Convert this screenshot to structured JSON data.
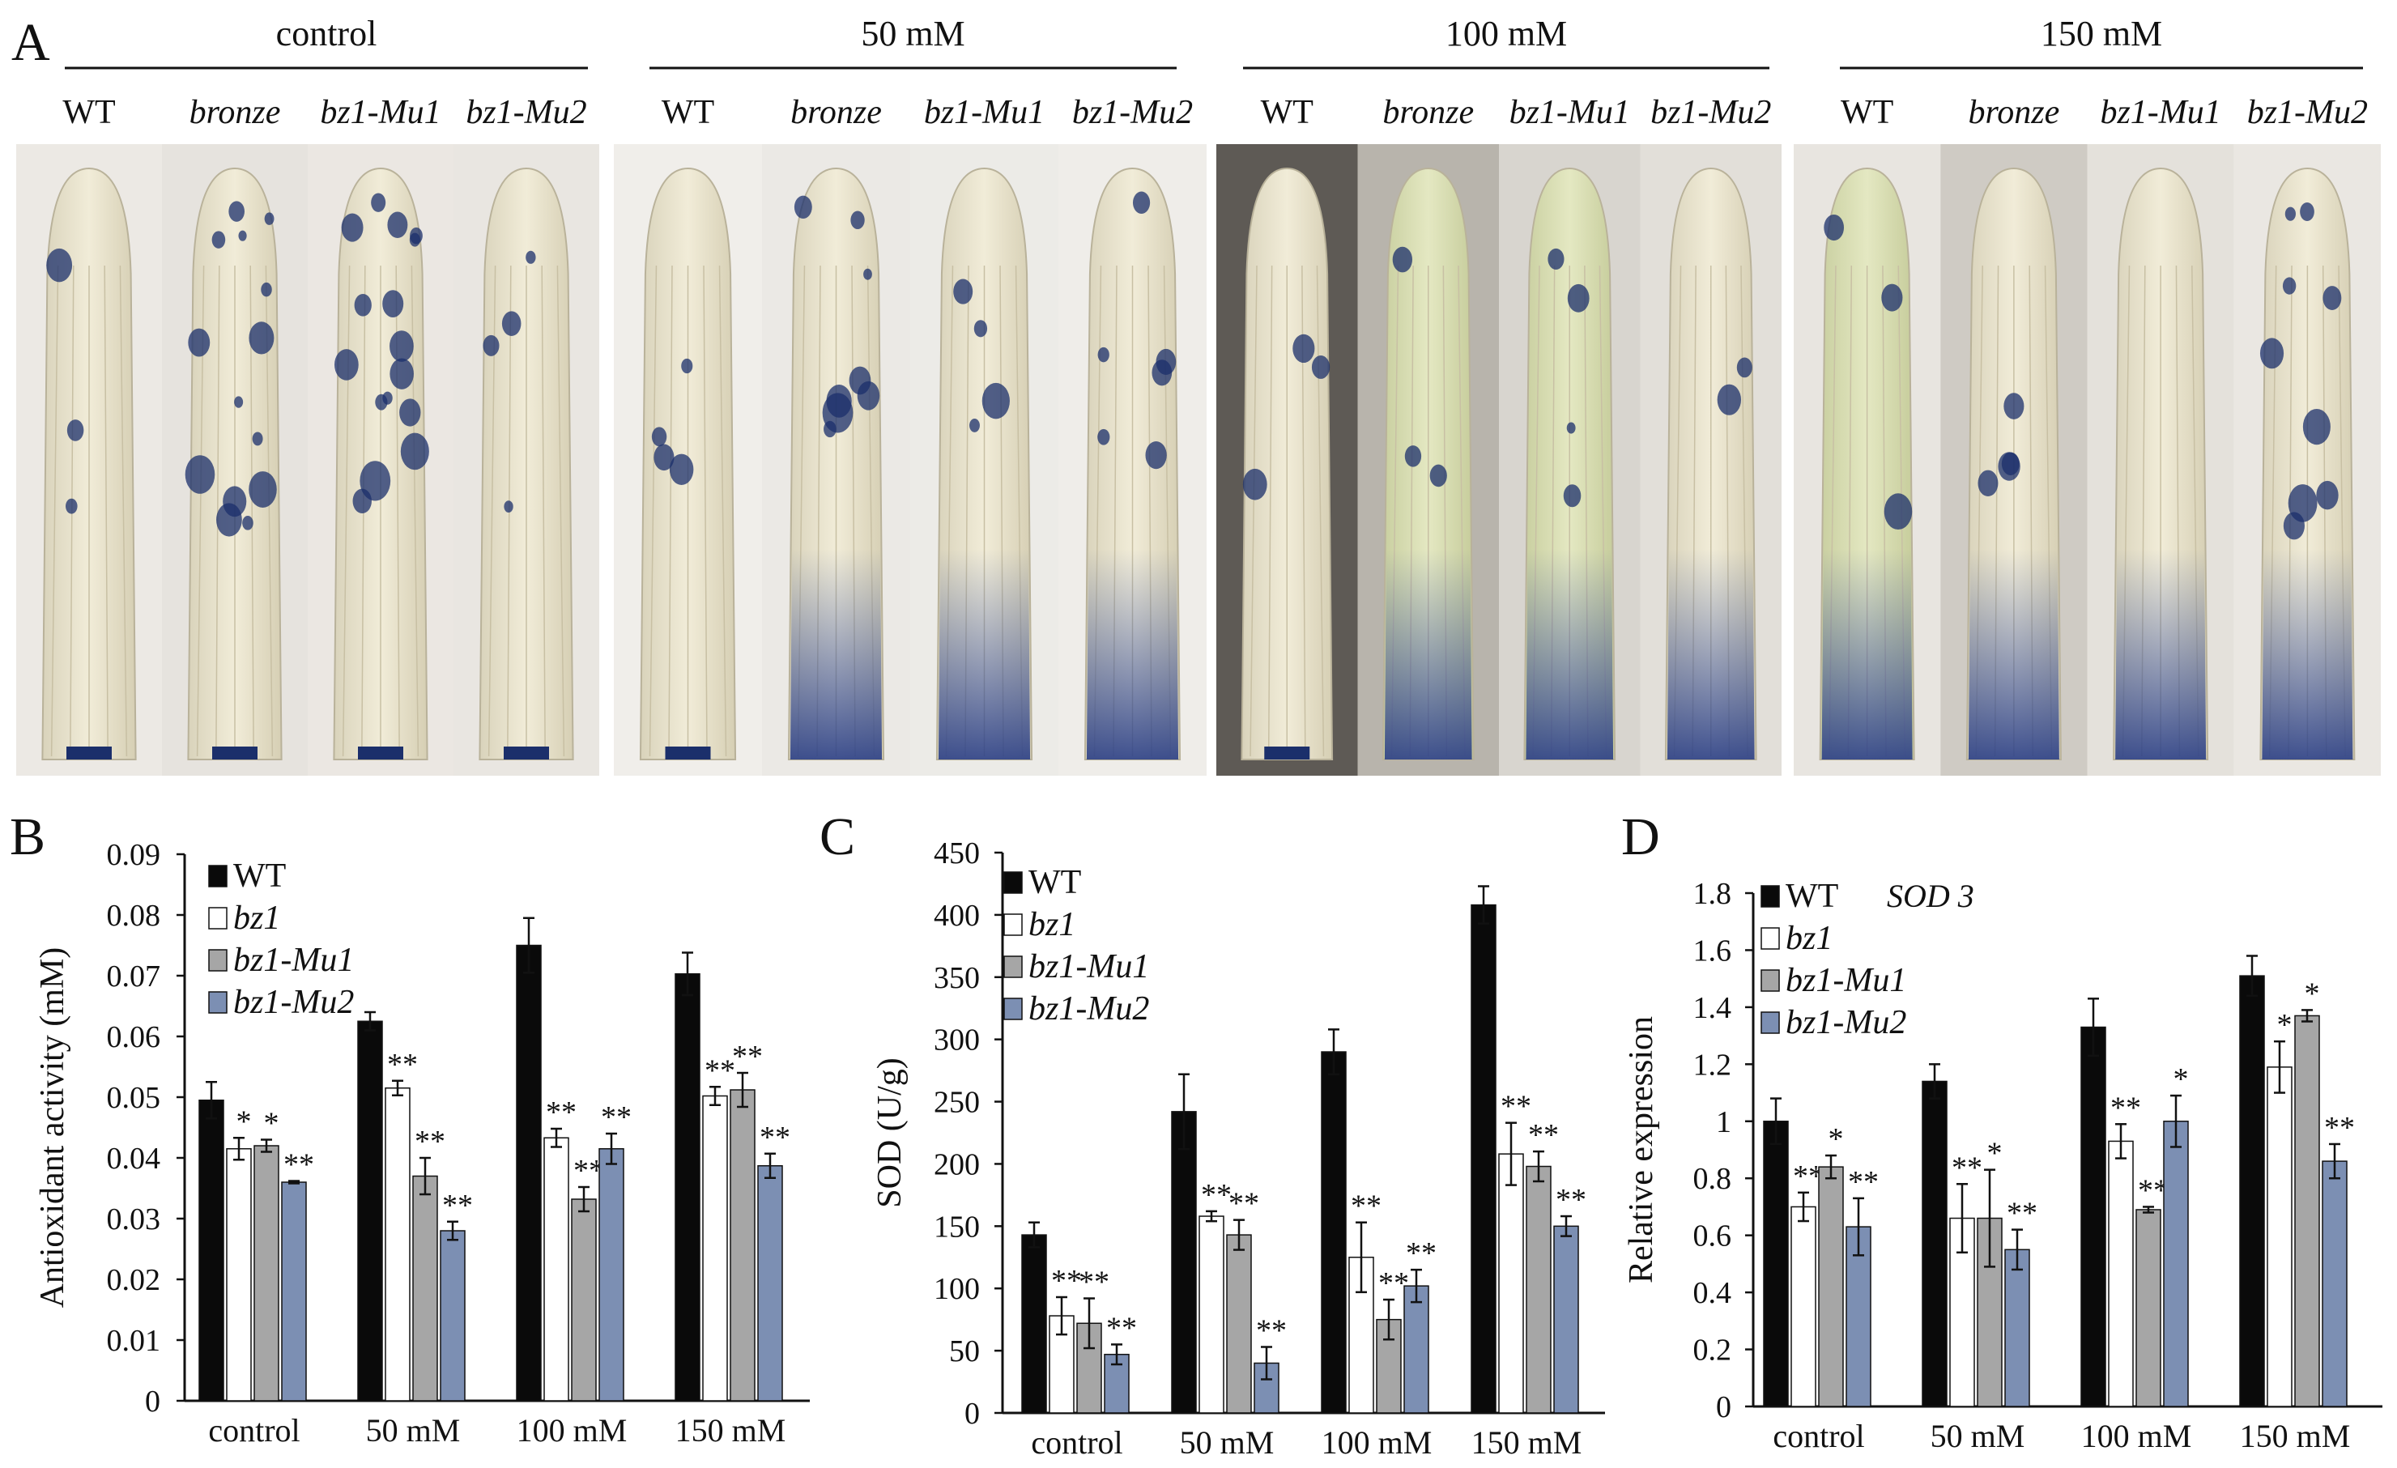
{
  "panel_a": {
    "label": "A",
    "groups": [
      {
        "title": "control",
        "genotypes": [
          "WT",
          "bronze",
          "bz1-Mu1",
          "bz1-Mu2"
        ]
      },
      {
        "title": "50 mM",
        "genotypes": [
          "WT",
          "bronze",
          "bz1-Mu1",
          "bz1-Mu2"
        ]
      },
      {
        "title": "100 mM",
        "genotypes": [
          "WT",
          "bronze",
          "bz1-Mu1",
          "bz1-Mu2"
        ]
      },
      {
        "title": "150 mM",
        "genotypes": [
          "WT",
          "bronze",
          "bz1-Mu1",
          "bz1-Mu2"
        ]
      }
    ]
  },
  "colors": {
    "wt": "#0a0a0a",
    "bz1": "#ffffff",
    "mu1": "#a6a6a6",
    "mu2": "#7c8fb3",
    "stain_blue": "#1b2f6b",
    "leaf": "#ece6cf"
  },
  "chart_data": [
    {
      "panel": "B",
      "type": "bar",
      "title": "",
      "ylabel": "Antioxidant activity (mM)",
      "xlabel": "",
      "ylim": [
        0,
        0.09
      ],
      "yticks": [
        "0",
        "0.01",
        "0.02",
        "0.03",
        "0.04",
        "0.05",
        "0.06",
        "0.07",
        "0.08",
        "0.09"
      ],
      "categories": [
        "control",
        "50 mM",
        "100 mM",
        "150 mM"
      ],
      "series": [
        {
          "name": "WT",
          "values": [
            0.0495,
            0.0625,
            0.075,
            0.0703
          ],
          "errors": [
            0.003,
            0.0015,
            0.0045,
            0.0035
          ],
          "stars": [
            "",
            "",
            "",
            ""
          ]
        },
        {
          "name": "bz1",
          "values": [
            0.0415,
            0.0515,
            0.0433,
            0.0502
          ],
          "errors": [
            0.0018,
            0.0012,
            0.0015,
            0.0015
          ],
          "stars": [
            "*",
            "**",
            "**",
            "**"
          ]
        },
        {
          "name": "bz1-Mu1",
          "values": [
            0.042,
            0.037,
            0.0332,
            0.0512
          ],
          "errors": [
            0.001,
            0.003,
            0.002,
            0.0028
          ],
          "stars": [
            "*",
            "**",
            "**",
            "**"
          ]
        },
        {
          "name": "bz1-Mu2",
          "values": [
            0.036,
            0.028,
            0.0415,
            0.0387
          ],
          "errors": [
            0.0002,
            0.0015,
            0.0025,
            0.002
          ],
          "stars": [
            "**",
            "**",
            "**",
            "**"
          ]
        }
      ]
    },
    {
      "panel": "C",
      "type": "bar",
      "title": "",
      "ylabel": "SOD (U/g)",
      "xlabel": "",
      "ylim": [
        0,
        450
      ],
      "yticks": [
        "0",
        "50",
        "100",
        "150",
        "200",
        "250",
        "300",
        "350",
        "400",
        "450"
      ],
      "categories": [
        "control",
        "50 mM",
        "100 mM",
        "150 mM"
      ],
      "series": [
        {
          "name": "WT",
          "values": [
            143,
            242,
            290,
            408
          ],
          "errors": [
            10,
            30,
            18,
            15
          ],
          "stars": [
            "",
            "",
            "",
            ""
          ]
        },
        {
          "name": "bz1",
          "values": [
            78,
            158,
            125,
            208
          ],
          "errors": [
            15,
            4,
            28,
            25
          ],
          "stars": [
            "**",
            "**",
            "**",
            "**"
          ]
        },
        {
          "name": "bz1-Mu1",
          "values": [
            72,
            143,
            75,
            198
          ],
          "errors": [
            20,
            12,
            16,
            12
          ],
          "stars": [
            "**",
            "**",
            "**",
            "**"
          ]
        },
        {
          "name": "bz1-Mu2",
          "values": [
            47,
            40,
            102,
            150
          ],
          "errors": [
            8,
            13,
            13,
            8
          ],
          "stars": [
            "**",
            "**",
            "**",
            "**"
          ]
        }
      ]
    },
    {
      "panel": "D",
      "type": "bar",
      "title": "SOD 3",
      "ylabel": "Relative expression",
      "xlabel": "",
      "ylim": [
        0,
        1.8
      ],
      "yticks": [
        "0",
        "0.2",
        "0.4",
        "0.6",
        "0.8",
        "1",
        "1.2",
        "1.4",
        "1.6",
        "1.8"
      ],
      "categories": [
        "control",
        "50 mM",
        "100 mM",
        "150 mM"
      ],
      "series": [
        {
          "name": "WT",
          "values": [
            1.0,
            1.14,
            1.33,
            1.51
          ],
          "errors": [
            0.08,
            0.06,
            0.1,
            0.07
          ],
          "stars": [
            "",
            "",
            "",
            ""
          ]
        },
        {
          "name": "bz1",
          "values": [
            0.7,
            0.66,
            0.93,
            1.19
          ],
          "errors": [
            0.05,
            0.12,
            0.06,
            0.09
          ],
          "stars": [
            "**",
            "**",
            "**",
            "*"
          ]
        },
        {
          "name": "bz1-Mu1",
          "values": [
            0.84,
            0.66,
            0.69,
            1.37
          ],
          "errors": [
            0.04,
            0.17,
            0.01,
            0.02
          ],
          "stars": [
            "*",
            "*",
            "**",
            "*"
          ]
        },
        {
          "name": "bz1-Mu2",
          "values": [
            0.63,
            0.55,
            1.0,
            0.86
          ],
          "errors": [
            0.1,
            0.07,
            0.09,
            0.06
          ],
          "stars": [
            "**",
            "**",
            "*",
            "**"
          ]
        }
      ]
    }
  ]
}
